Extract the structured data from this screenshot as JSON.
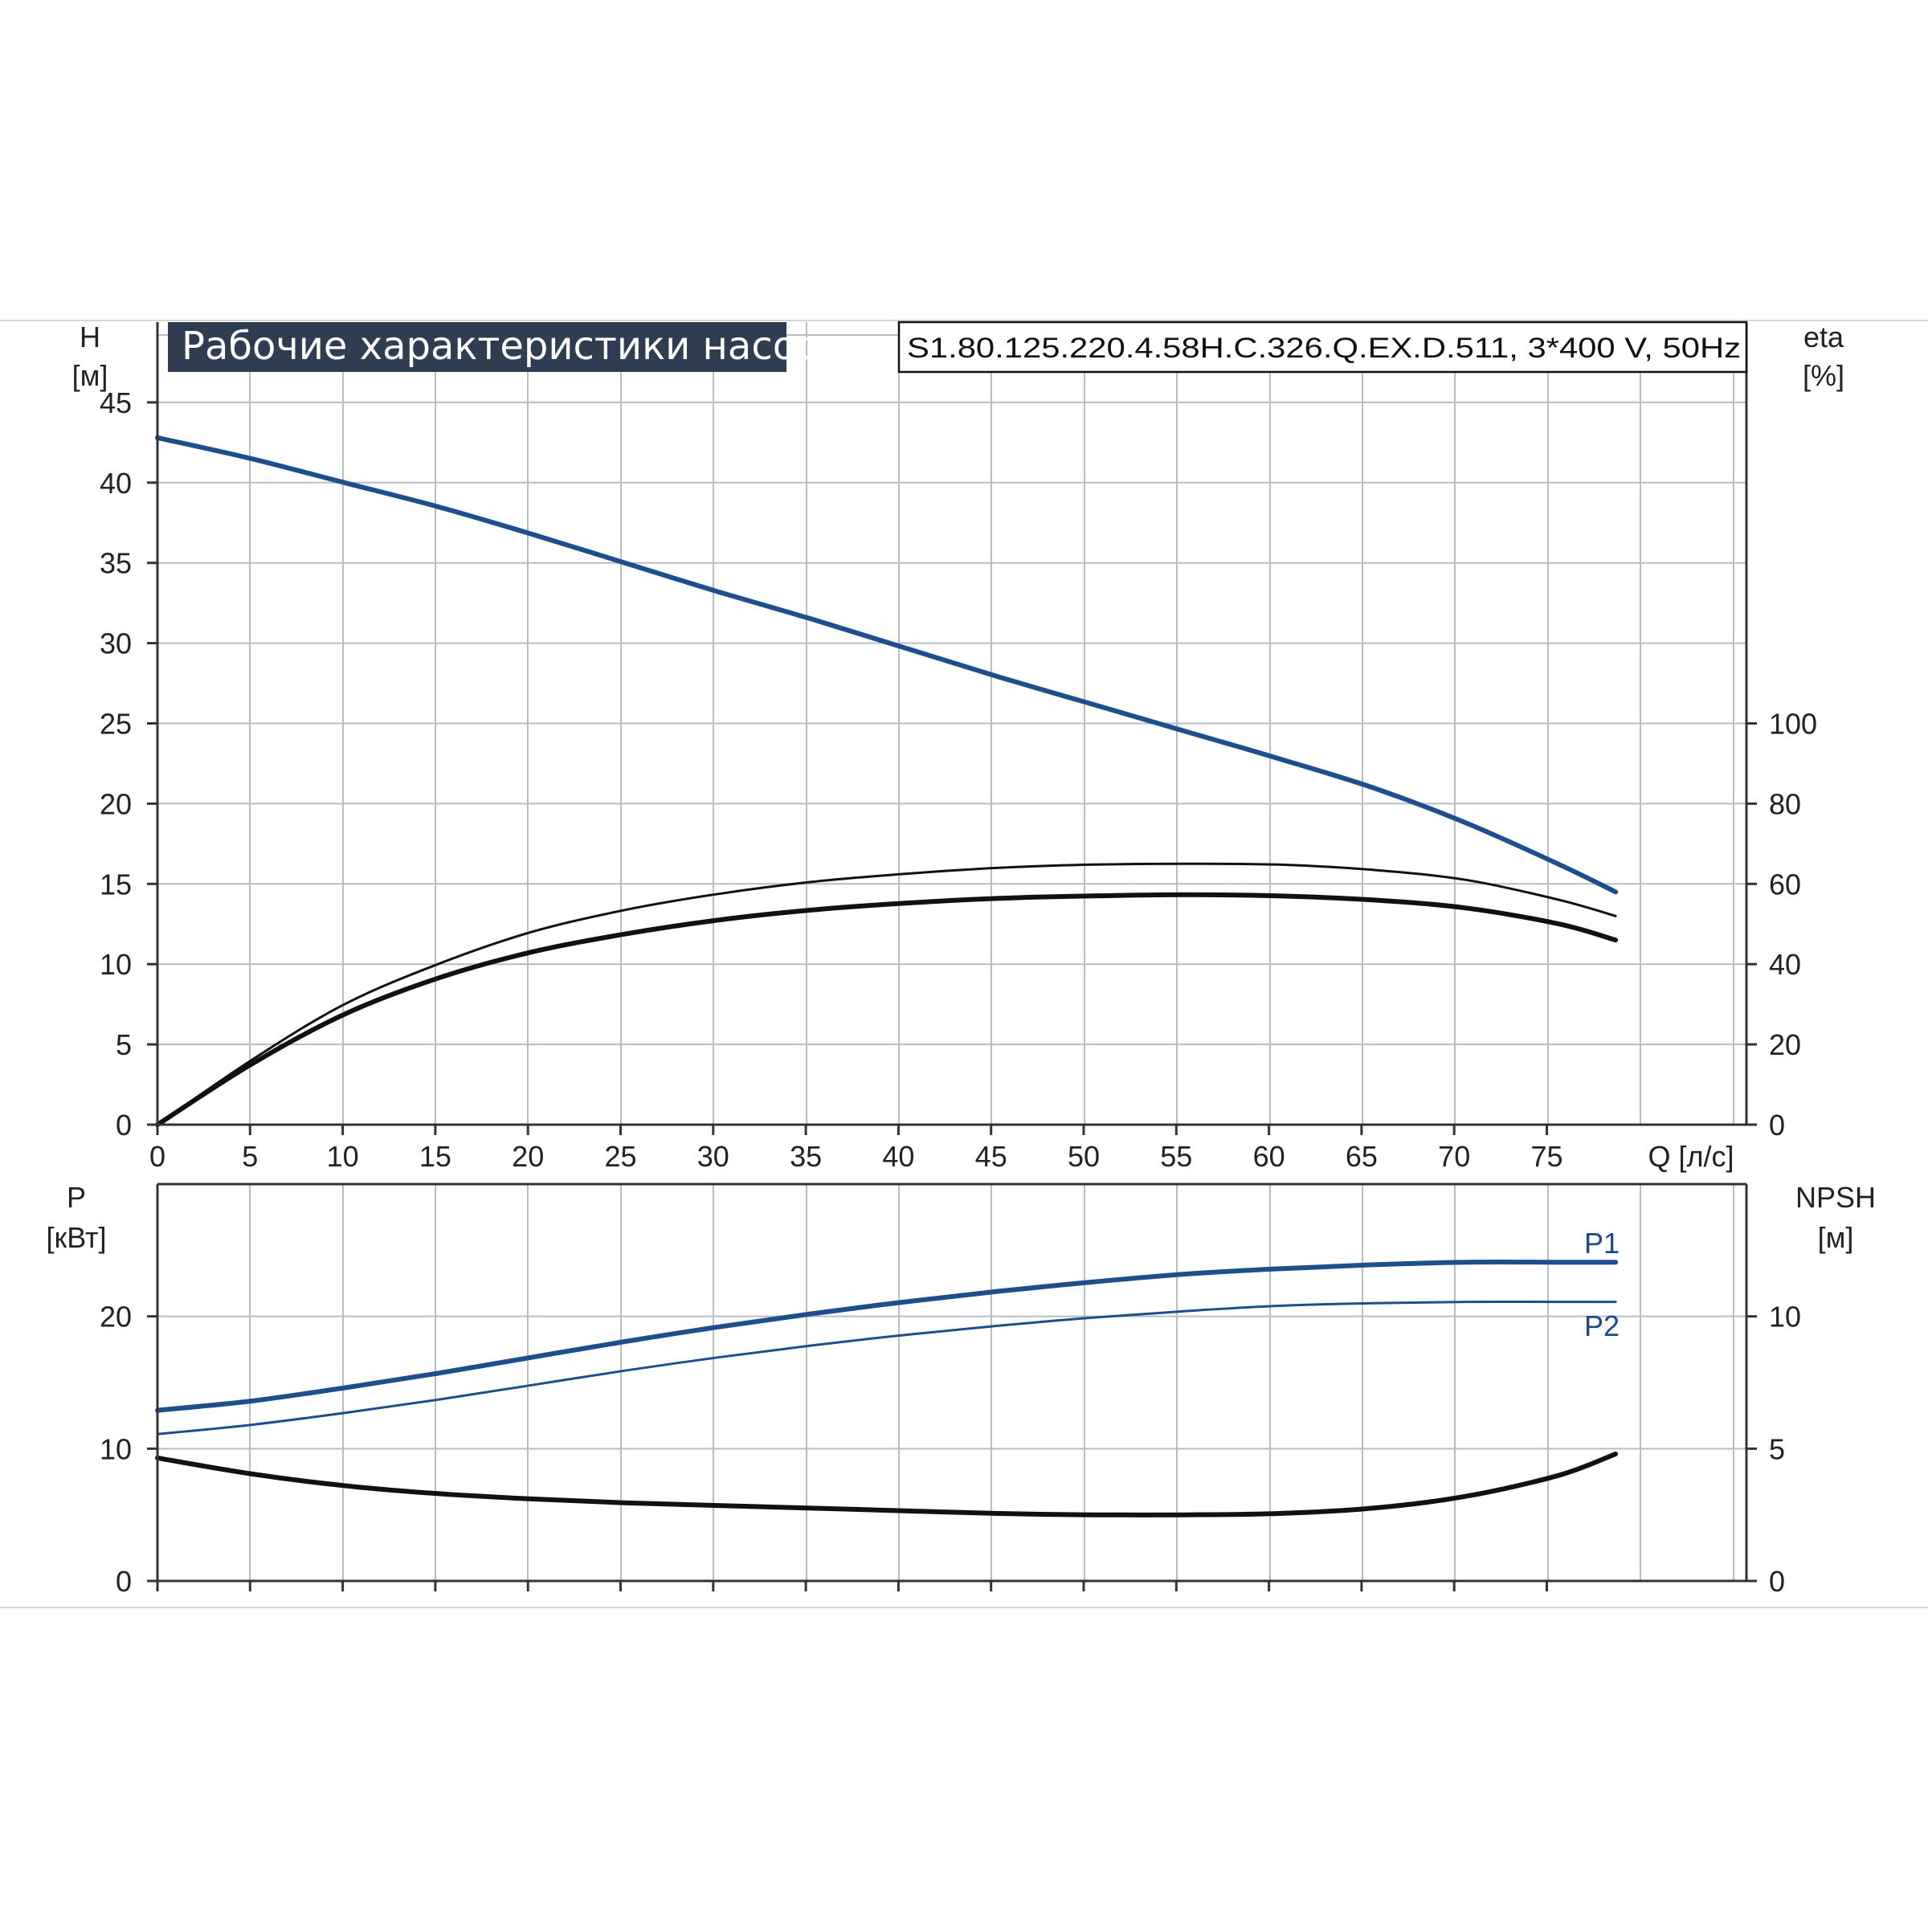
{
  "title": "Рабочие характеристики насоса",
  "model": "S1.80.125.220.4.58H.C.326.Q.EX.D.511, 3*400 V, 50Hz",
  "colors": {
    "blue": "#1d4f8c",
    "black": "#111111",
    "grid": "#b8bcc4",
    "title_bg": "#2f3d52",
    "separator": "#d6d6d6"
  },
  "chart_data": [
    {
      "type": "line",
      "name": "top",
      "x_axis": {
        "label": "Q [л/с]",
        "range": [
          0,
          85
        ],
        "ticks": [
          0,
          5,
          10,
          15,
          20,
          25,
          30,
          35,
          40,
          45,
          50,
          55,
          60,
          65,
          70,
          75
        ]
      },
      "y_axis_left": {
        "label_line1": "H",
        "label_line2": "[м]",
        "range": [
          0,
          50
        ],
        "ticks": [
          0,
          5,
          10,
          15,
          20,
          25,
          30,
          35,
          40,
          45
        ]
      },
      "y_axis_right": {
        "label_line1": "eta",
        "label_line2": "[%]",
        "range": [
          0,
          200
        ],
        "ticks": [
          0,
          20,
          40,
          60,
          80,
          100
        ]
      },
      "grid": true,
      "series": [
        {
          "key": "head",
          "axis": "left",
          "color": "blue",
          "weight": "bold",
          "x": [
            0,
            5,
            10,
            15,
            20,
            25,
            30,
            35,
            40,
            45,
            50,
            55,
            60,
            65,
            70,
            75,
            78
          ],
          "y": [
            42.8,
            41.5,
            40.0,
            38.5,
            36.8,
            35.0,
            33.2,
            31.5,
            29.7,
            27.9,
            26.2,
            24.5,
            22.8,
            21.0,
            18.8,
            16.2,
            14.5
          ]
        },
        {
          "key": "efficiency_1",
          "axis": "right",
          "color": "black",
          "weight": "thin",
          "x": [
            0,
            5,
            10,
            15,
            20,
            25,
            30,
            35,
            40,
            45,
            50,
            55,
            60,
            65,
            70,
            75,
            78
          ],
          "y": [
            0,
            16,
            30,
            40,
            48,
            53.5,
            57.5,
            60.5,
            62.5,
            64,
            64.8,
            65,
            64.8,
            63.5,
            61,
            56,
            52
          ]
        },
        {
          "key": "efficiency_2",
          "axis": "right",
          "color": "black",
          "weight": "bold",
          "x": [
            0,
            5,
            10,
            15,
            20,
            25,
            30,
            35,
            40,
            45,
            50,
            55,
            60,
            65,
            70,
            75,
            78
          ],
          "y": [
            0,
            15,
            27.5,
            36.5,
            43,
            47.5,
            51,
            53.5,
            55.2,
            56.4,
            57,
            57.3,
            57,
            56,
            54,
            50,
            46
          ]
        }
      ]
    },
    {
      "type": "line",
      "name": "bottom",
      "x_axis": {
        "range": [
          0,
          85
        ]
      },
      "y_axis_left": {
        "label_line1": "P",
        "label_line2": "[кВт]",
        "range": [
          0,
          30
        ],
        "ticks": [
          0,
          10,
          20
        ]
      },
      "y_axis_right": {
        "label_line1": "NPSH",
        "label_line2": "[м]",
        "range": [
          0,
          15
        ],
        "ticks": [
          0,
          5,
          10
        ]
      },
      "grid": true,
      "series": [
        {
          "key": "P1",
          "name": "P1",
          "axis": "left",
          "color": "blue",
          "weight": "bold",
          "x": [
            0,
            5,
            10,
            15,
            20,
            25,
            30,
            35,
            40,
            45,
            50,
            55,
            60,
            65,
            70,
            75,
            78
          ],
          "y": [
            12.9,
            13.6,
            14.6,
            15.7,
            16.9,
            18.1,
            19.2,
            20.2,
            21.1,
            21.9,
            22.6,
            23.2,
            23.6,
            23.9,
            24.1,
            24.1,
            24.1
          ]
        },
        {
          "key": "P2",
          "name": "P2",
          "axis": "left",
          "color": "blue",
          "weight": "thin",
          "x": [
            0,
            5,
            10,
            15,
            20,
            25,
            30,
            35,
            40,
            45,
            50,
            55,
            60,
            65,
            70,
            75,
            78
          ],
          "y": [
            11.1,
            11.8,
            12.7,
            13.7,
            14.8,
            15.9,
            16.9,
            17.8,
            18.6,
            19.3,
            19.9,
            20.4,
            20.8,
            21.0,
            21.1,
            21.1,
            21.1
          ]
        },
        {
          "key": "NPSH",
          "axis": "right",
          "color": "black",
          "weight": "bold",
          "x": [
            0,
            5,
            10,
            15,
            20,
            25,
            30,
            35,
            40,
            45,
            50,
            55,
            60,
            65,
            70,
            75,
            78
          ],
          "y": [
            4.65,
            4.05,
            3.6,
            3.3,
            3.1,
            2.95,
            2.85,
            2.75,
            2.65,
            2.55,
            2.5,
            2.5,
            2.55,
            2.75,
            3.2,
            4.0,
            4.8
          ]
        }
      ]
    }
  ]
}
